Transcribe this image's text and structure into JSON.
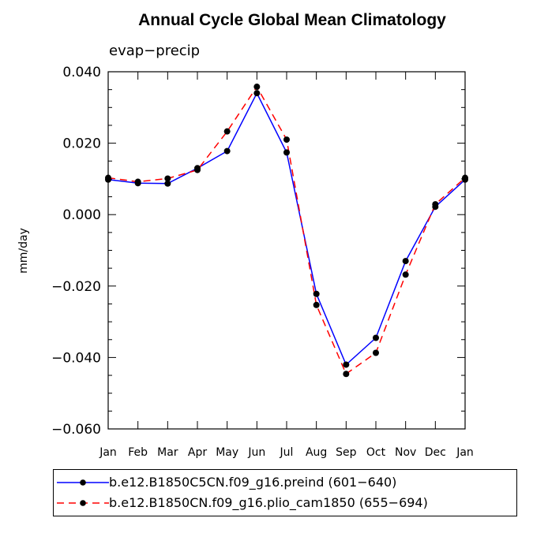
{
  "chart_data": {
    "type": "line",
    "title": "Annual Cycle Global Mean Climatology",
    "subtitle": "evap−precip",
    "xlabel": "",
    "ylabel": "mm/day",
    "categories": [
      "Jan",
      "Feb",
      "Mar",
      "Apr",
      "May",
      "Jun",
      "Jul",
      "Aug",
      "Sep",
      "Oct",
      "Nov",
      "Dec",
      "Jan"
    ],
    "ylim": [
      -0.06,
      0.04
    ],
    "yticks": [
      -0.06,
      -0.04,
      -0.02,
      0.0,
      0.02,
      0.04
    ],
    "ytick_labels": [
      "−0.060",
      "−0.040",
      "−0.020",
      "0.000",
      "0.020",
      "0.040"
    ],
    "series": [
      {
        "name": "b.e12.B1850C5CN.f09_g16.preind (601−640)",
        "color": "#0000ff",
        "dash": "solid",
        "values": [
          0.0098,
          0.0088,
          0.0087,
          0.013,
          0.0178,
          0.034,
          0.0174,
          -0.0222,
          -0.042,
          -0.0345,
          -0.013,
          0.0022,
          0.0098
        ]
      },
      {
        "name": "b.e12.B1850CN.f09_g16.plio_cam1850 (655−694)",
        "color": "#ff0000",
        "dash": "dashed",
        "values": [
          0.0103,
          0.0092,
          0.0101,
          0.0125,
          0.0233,
          0.0358,
          0.021,
          -0.0253,
          -0.0446,
          -0.0387,
          -0.0168,
          0.0029,
          0.0103
        ]
      }
    ],
    "grid": false,
    "legend_position": "bottom"
  }
}
